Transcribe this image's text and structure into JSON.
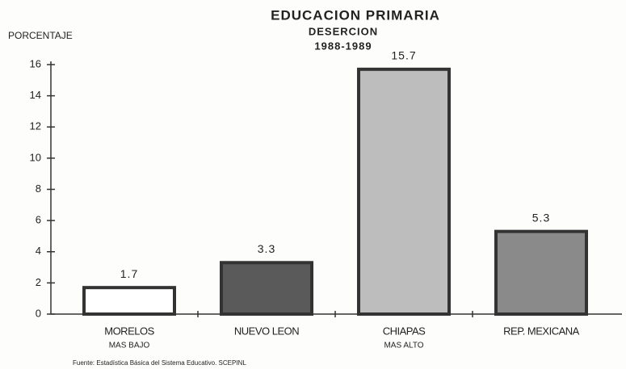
{
  "chart_data": {
    "type": "bar",
    "title": "EDUCACION PRIMARIA",
    "subtitle": "DESERCION",
    "period": "1988-1989",
    "y_label": "PORCENTAJE",
    "categories": [
      "MORELOS",
      "NUEVO LEON",
      "CHIAPAS",
      "REP. MEXICANA"
    ],
    "category_notes": [
      "MAS BAJO",
      null,
      "MAS ALTO",
      null
    ],
    "values": [
      1.7,
      3.3,
      15.7,
      5.3
    ],
    "colors": [
      "#ffffff",
      "#5a5a5a",
      "#bdbdbd",
      "#8a8a8a"
    ],
    "ylim": [
      0,
      16
    ],
    "yticks": [
      0,
      2,
      4,
      6,
      8,
      10,
      12,
      14,
      16
    ],
    "source": "Fuente: Estadística Básica del Sistema Educativo. SCEPINL"
  }
}
